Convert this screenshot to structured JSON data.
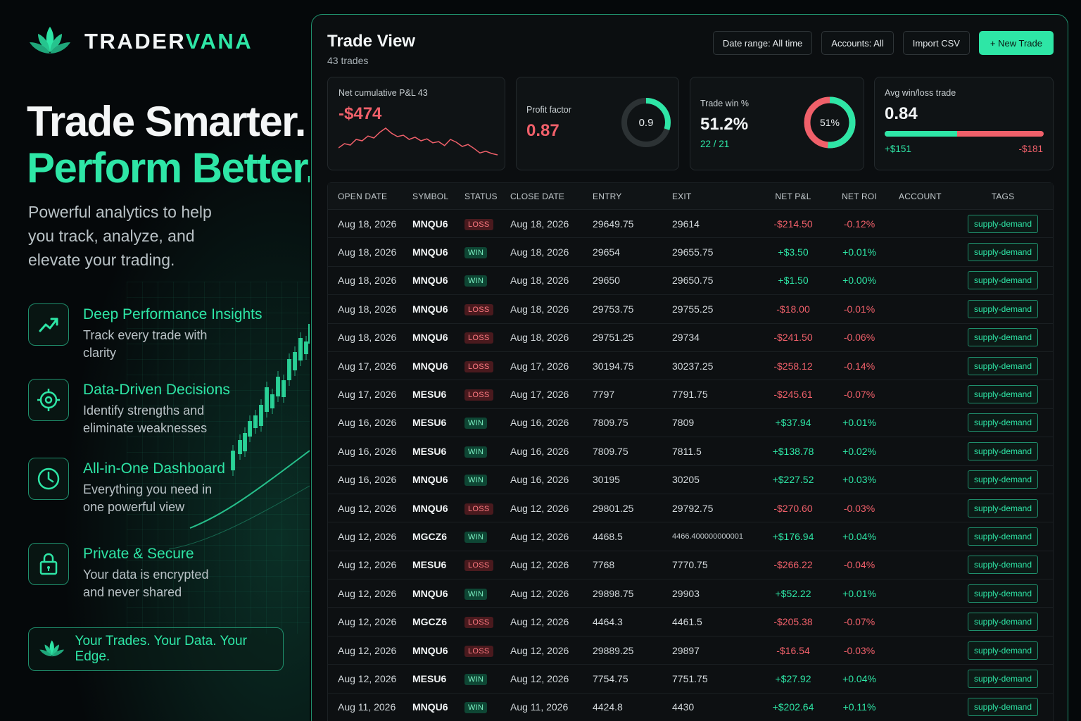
{
  "brand": {
    "name_main": "TRADER",
    "name_accent": "VANA"
  },
  "hero": {
    "line1": "Trade Smarter.",
    "line2": "Perform Better.",
    "lead": "Powerful analytics to help you track, analyze, and elevate your trading."
  },
  "features": [
    {
      "icon": "trend-up-icon",
      "title": "Deep Performance Insights",
      "desc": "Track every trade with clarity"
    },
    {
      "icon": "target-icon",
      "title": "Data-Driven Decisions",
      "desc": "Identify strengths and eliminate weaknesses"
    },
    {
      "icon": "clock-icon",
      "title": "All-in-One Dashboard",
      "desc": "Everything you need in one powerful view"
    },
    {
      "icon": "lock-icon",
      "title": "Private & Secure",
      "desc": "Your data is encrypted and never shared"
    }
  ],
  "tagline": "Your Trades. Your Data. Your Edge.",
  "app": {
    "title": "Trade View",
    "subtitle": "43 trades",
    "toolbar": {
      "date_range": "Date range: All time",
      "accounts": "Accounts: All",
      "import": "Import CSV",
      "new_trade": "+ New Trade"
    },
    "cards": {
      "pnl": {
        "label": "Net cumulative P&L 43",
        "value": "-$474",
        "sparkline": [
          0.3,
          0.45,
          0.4,
          0.6,
          0.55,
          0.72,
          0.65,
          0.85,
          1.0,
          0.82,
          0.7,
          0.75,
          0.6,
          0.68,
          0.55,
          0.62,
          0.48,
          0.52,
          0.38,
          0.6,
          0.5,
          0.35,
          0.42,
          0.28,
          0.12,
          0.18,
          0.1,
          0.05
        ]
      },
      "profit_factor": {
        "label": "Profit factor",
        "value": "0.87",
        "ring_label": "0.9",
        "ring_fraction": 0.3
      },
      "win_rate": {
        "label": "Trade win %",
        "value": "51.2%",
        "sub": "22 / 21",
        "ring_label": "51%",
        "ring_fraction": 0.512
      },
      "avg_win_loss": {
        "label": "Avg win/loss trade",
        "value": "0.84",
        "win": "+$151",
        "loss": "-$181",
        "win_fraction": 0.455
      }
    },
    "colors": {
      "accent": "#2ee6a6",
      "negative": "#f0606a"
    },
    "table": {
      "headers": [
        "OPEN DATE",
        "SYMBOL",
        "STATUS",
        "CLOSE DATE",
        "ENTRY",
        "EXIT",
        "NET P&L",
        "NET ROI",
        "ACCOUNT",
        "TAGS"
      ],
      "rows": [
        {
          "open": "Aug 18, 2026",
          "symbol": "MNQU6",
          "status": "LOSS",
          "close": "Aug 18, 2026",
          "entry": "29649.75",
          "exit": "29614",
          "pnl": "-$214.50",
          "roi": "-0.12%",
          "account": "",
          "tag": "supply-demand"
        },
        {
          "open": "Aug 18, 2026",
          "symbol": "MNQU6",
          "status": "WIN",
          "close": "Aug 18, 2026",
          "entry": "29654",
          "exit": "29655.75",
          "pnl": "+$3.50",
          "roi": "+0.01%",
          "account": "",
          "tag": "supply-demand"
        },
        {
          "open": "Aug 18, 2026",
          "symbol": "MNQU6",
          "status": "WIN",
          "close": "Aug 18, 2026",
          "entry": "29650",
          "exit": "29650.75",
          "pnl": "+$1.50",
          "roi": "+0.00%",
          "account": "",
          "tag": "supply-demand"
        },
        {
          "open": "Aug 18, 2026",
          "symbol": "MNQU6",
          "status": "LOSS",
          "close": "Aug 18, 2026",
          "entry": "29753.75",
          "exit": "29755.25",
          "pnl": "-$18.00",
          "roi": "-0.01%",
          "account": "",
          "tag": "supply-demand"
        },
        {
          "open": "Aug 18, 2026",
          "symbol": "MNQU6",
          "status": "LOSS",
          "close": "Aug 18, 2026",
          "entry": "29751.25",
          "exit": "29734",
          "pnl": "-$241.50",
          "roi": "-0.06%",
          "account": "",
          "tag": "supply-demand"
        },
        {
          "open": "Aug 17, 2026",
          "symbol": "MNQU6",
          "status": "LOSS",
          "close": "Aug 17, 2026",
          "entry": "30194.75",
          "exit": "30237.25",
          "pnl": "-$258.12",
          "roi": "-0.14%",
          "account": "",
          "tag": "supply-demand"
        },
        {
          "open": "Aug 17, 2026",
          "symbol": "MESU6",
          "status": "LOSS",
          "close": "Aug 17, 2026",
          "entry": "7797",
          "exit": "7791.75",
          "pnl": "-$245.61",
          "roi": "-0.07%",
          "account": "",
          "tag": "supply-demand"
        },
        {
          "open": "Aug 16, 2026",
          "symbol": "MESU6",
          "status": "WIN",
          "close": "Aug 16, 2026",
          "entry": "7809.75",
          "exit": "7809",
          "pnl": "+$37.94",
          "roi": "+0.01%",
          "account": "",
          "tag": "supply-demand"
        },
        {
          "open": "Aug 16, 2026",
          "symbol": "MESU6",
          "status": "WIN",
          "close": "Aug 16, 2026",
          "entry": "7809.75",
          "exit": "7811.5",
          "pnl": "+$138.78",
          "roi": "+0.02%",
          "account": "",
          "tag": "supply-demand"
        },
        {
          "open": "Aug 16, 2026",
          "symbol": "MNQU6",
          "status": "WIN",
          "close": "Aug 16, 2026",
          "entry": "30195",
          "exit": "30205",
          "pnl": "+$227.52",
          "roi": "+0.03%",
          "account": "",
          "tag": "supply-demand"
        },
        {
          "open": "Aug 12, 2026",
          "symbol": "MNQU6",
          "status": "LOSS",
          "close": "Aug 12, 2026",
          "entry": "29801.25",
          "exit": "29792.75",
          "pnl": "-$270.60",
          "roi": "-0.03%",
          "account": "",
          "tag": "supply-demand"
        },
        {
          "open": "Aug 12, 2026",
          "symbol": "MGCZ6",
          "status": "WIN",
          "close": "Aug 12, 2026",
          "entry": "4468.5",
          "exit": "4466.400000000001",
          "pnl": "+$176.94",
          "roi": "+0.04%",
          "account": "",
          "tag": "supply-demand"
        },
        {
          "open": "Aug 12, 2026",
          "symbol": "MESU6",
          "status": "LOSS",
          "close": "Aug 12, 2026",
          "entry": "7768",
          "exit": "7770.75",
          "pnl": "-$266.22",
          "roi": "-0.04%",
          "account": "",
          "tag": "supply-demand"
        },
        {
          "open": "Aug 12, 2026",
          "symbol": "MNQU6",
          "status": "WIN",
          "close": "Aug 12, 2026",
          "entry": "29898.75",
          "exit": "29903",
          "pnl": "+$52.22",
          "roi": "+0.01%",
          "account": "",
          "tag": "supply-demand"
        },
        {
          "open": "Aug 12, 2026",
          "symbol": "MGCZ6",
          "status": "LOSS",
          "close": "Aug 12, 2026",
          "entry": "4464.3",
          "exit": "4461.5",
          "pnl": "-$205.38",
          "roi": "-0.07%",
          "account": "",
          "tag": "supply-demand"
        },
        {
          "open": "Aug 12, 2026",
          "symbol": "MNQU6",
          "status": "LOSS",
          "close": "Aug 12, 2026",
          "entry": "29889.25",
          "exit": "29897",
          "pnl": "-$16.54",
          "roi": "-0.03%",
          "account": "",
          "tag": "supply-demand"
        },
        {
          "open": "Aug 12, 2026",
          "symbol": "MESU6",
          "status": "WIN",
          "close": "Aug 12, 2026",
          "entry": "7754.75",
          "exit": "7751.75",
          "pnl": "+$27.92",
          "roi": "+0.04%",
          "account": "",
          "tag": "supply-demand"
        },
        {
          "open": "Aug 11, 2026",
          "symbol": "MNQU6",
          "status": "WIN",
          "close": "Aug 11, 2026",
          "entry": "4424.8",
          "exit": "4430",
          "pnl": "+$202.64",
          "roi": "+0.11%",
          "account": "",
          "tag": "supply-demand"
        }
      ]
    }
  }
}
